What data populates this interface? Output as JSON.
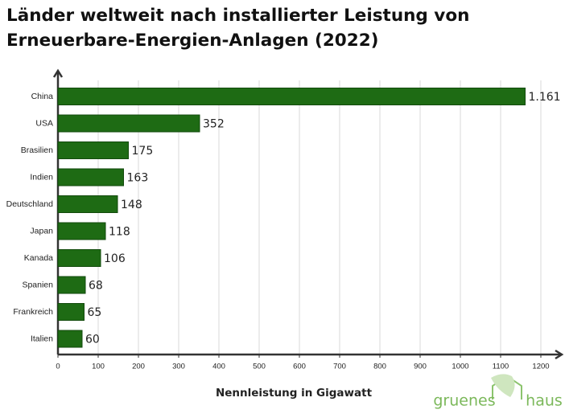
{
  "chart_data": {
    "type": "hbar",
    "title": "Länder weltweit nach installierter Leistung von Erneuerbare-Energien-Anlagen (2022)",
    "xlabel": "Nennleistung in Gigawatt",
    "categories": [
      "China",
      "USA",
      "Brasilien",
      "Indien",
      "Deutschland",
      "Japan",
      "Kanada",
      "Spanien",
      "Frankreich",
      "Italien"
    ],
    "values": [
      1161,
      352,
      175,
      163,
      148,
      118,
      106,
      68,
      65,
      60
    ],
    "value_labels": [
      "1.161",
      "352",
      "175",
      "163",
      "148",
      "118",
      "106",
      "68",
      "65",
      "60"
    ],
    "color": "#1e6b14",
    "xlim": [
      0,
      1200
    ],
    "xticks": [
      0,
      100,
      200,
      300,
      400,
      500,
      600,
      700,
      800,
      900,
      1000,
      1100,
      1200
    ],
    "grid": true
  },
  "logo": [
    "gruenes",
    "haus"
  ]
}
